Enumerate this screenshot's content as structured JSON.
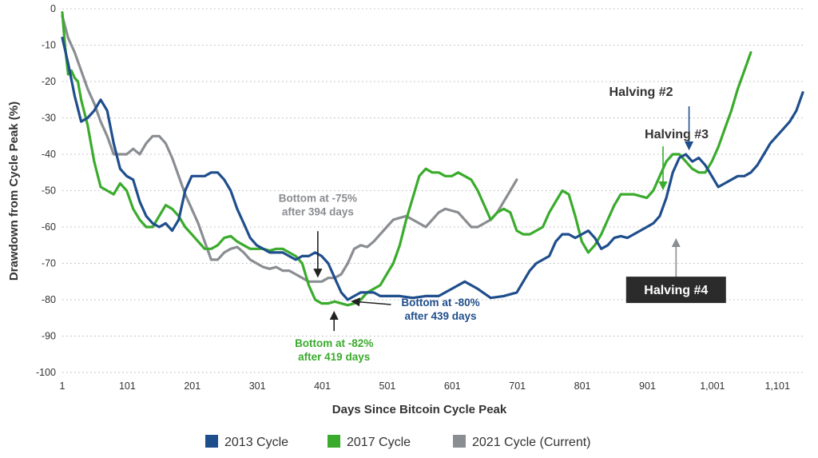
{
  "chart_data": {
    "type": "line",
    "title": "",
    "xlabel": "Days Since Bitcoin Cycle Peak",
    "ylabel": "Drawdown from Cycle Peak (%)",
    "xlim": [
      1,
      1140
    ],
    "ylim": [
      -100,
      0
    ],
    "x_ticks": [
      1,
      101,
      201,
      301,
      401,
      501,
      601,
      701,
      801,
      901,
      1001,
      1101
    ],
    "x_tick_labels": [
      "1",
      "101",
      "201",
      "301",
      "401",
      "501",
      "601",
      "701",
      "801",
      "901",
      "1,001",
      "1,101"
    ],
    "y_ticks": [
      0,
      -10,
      -20,
      -30,
      -40,
      -50,
      -60,
      -70,
      -80,
      -90,
      -100
    ],
    "y_tick_labels": [
      "0",
      "-10",
      "-20",
      "-30",
      "-40",
      "-50",
      "-60",
      "-70",
      "-80",
      "-90",
      "-100"
    ],
    "grid": "horizontal dotted",
    "legend_position": "bottom",
    "series": [
      {
        "name": "2013 Cycle",
        "color": "#1f4e8c",
        "points": [
          [
            1,
            -8
          ],
          [
            10,
            -15
          ],
          [
            20,
            -24
          ],
          [
            30,
            -31
          ],
          [
            40,
            -30
          ],
          [
            50,
            -28
          ],
          [
            60,
            -25
          ],
          [
            70,
            -28
          ],
          [
            80,
            -37
          ],
          [
            90,
            -44
          ],
          [
            100,
            -46
          ],
          [
            110,
            -47
          ],
          [
            120,
            -53
          ],
          [
            130,
            -57
          ],
          [
            140,
            -59
          ],
          [
            150,
            -60
          ],
          [
            160,
            -59
          ],
          [
            170,
            -61
          ],
          [
            180,
            -58
          ],
          [
            190,
            -50
          ],
          [
            200,
            -46
          ],
          [
            210,
            -46
          ],
          [
            220,
            -46
          ],
          [
            230,
            -45
          ],
          [
            240,
            -45
          ],
          [
            250,
            -47
          ],
          [
            260,
            -50
          ],
          [
            270,
            -55
          ],
          [
            280,
            -59
          ],
          [
            290,
            -63
          ],
          [
            300,
            -65
          ],
          [
            310,
            -66
          ],
          [
            320,
            -67
          ],
          [
            330,
            -67
          ],
          [
            340,
            -67
          ],
          [
            350,
            -68
          ],
          [
            360,
            -69
          ],
          [
            370,
            -68
          ],
          [
            380,
            -68
          ],
          [
            390,
            -67
          ],
          [
            400,
            -68
          ],
          [
            410,
            -70
          ],
          [
            420,
            -74
          ],
          [
            430,
            -78
          ],
          [
            440,
            -80
          ],
          [
            450,
            -79
          ],
          [
            460,
            -78
          ],
          [
            470,
            -78
          ],
          [
            480,
            -78
          ],
          [
            490,
            -79
          ],
          [
            500,
            -79
          ],
          [
            520,
            -79
          ],
          [
            540,
            -79.5
          ],
          [
            560,
            -79
          ],
          [
            580,
            -79
          ],
          [
            600,
            -77
          ],
          [
            620,
            -75
          ],
          [
            640,
            -77
          ],
          [
            660,
            -79.5
          ],
          [
            680,
            -79
          ],
          [
            700,
            -78
          ],
          [
            710,
            -75
          ],
          [
            720,
            -72
          ],
          [
            730,
            -70
          ],
          [
            740,
            -69
          ],
          [
            750,
            -68
          ],
          [
            760,
            -64
          ],
          [
            770,
            -62
          ],
          [
            780,
            -62
          ],
          [
            790,
            -63
          ],
          [
            800,
            -62
          ],
          [
            810,
            -61
          ],
          [
            820,
            -63
          ],
          [
            830,
            -66
          ],
          [
            840,
            -65
          ],
          [
            850,
            -63
          ],
          [
            860,
            -62.5
          ],
          [
            870,
            -63
          ],
          [
            880,
            -62
          ],
          [
            890,
            -61
          ],
          [
            900,
            -60
          ],
          [
            910,
            -59
          ],
          [
            920,
            -57
          ],
          [
            930,
            -52
          ],
          [
            940,
            -45
          ],
          [
            950,
            -41
          ],
          [
            960,
            -40
          ],
          [
            970,
            -42
          ],
          [
            980,
            -41
          ],
          [
            990,
            -43
          ],
          [
            1000,
            -46
          ],
          [
            1010,
            -49
          ],
          [
            1020,
            -48
          ],
          [
            1030,
            -47
          ],
          [
            1040,
            -46
          ],
          [
            1050,
            -46
          ],
          [
            1060,
            -45
          ],
          [
            1070,
            -43
          ],
          [
            1080,
            -40
          ],
          [
            1090,
            -37
          ],
          [
            1100,
            -35
          ],
          [
            1110,
            -33
          ],
          [
            1120,
            -31
          ],
          [
            1130,
            -28
          ],
          [
            1140,
            -23
          ]
        ]
      },
      {
        "name": "2017 Cycle",
        "color": "#3aab2c",
        "points": [
          [
            1,
            -1
          ],
          [
            5,
            -10
          ],
          [
            10,
            -18
          ],
          [
            15,
            -17
          ],
          [
            20,
            -19
          ],
          [
            25,
            -20
          ],
          [
            30,
            -25
          ],
          [
            40,
            -32
          ],
          [
            50,
            -42
          ],
          [
            60,
            -49
          ],
          [
            70,
            -50
          ],
          [
            80,
            -51
          ],
          [
            90,
            -48
          ],
          [
            100,
            -50
          ],
          [
            110,
            -55
          ],
          [
            120,
            -58
          ],
          [
            130,
            -60
          ],
          [
            140,
            -60
          ],
          [
            150,
            -57
          ],
          [
            160,
            -54
          ],
          [
            170,
            -55
          ],
          [
            180,
            -57
          ],
          [
            190,
            -60
          ],
          [
            200,
            -62
          ],
          [
            210,
            -64
          ],
          [
            220,
            -66
          ],
          [
            230,
            -66
          ],
          [
            240,
            -65
          ],
          [
            250,
            -63
          ],
          [
            260,
            -62.5
          ],
          [
            270,
            -64
          ],
          [
            280,
            -65
          ],
          [
            290,
            -66
          ],
          [
            300,
            -66
          ],
          [
            310,
            -66
          ],
          [
            320,
            -66.5
          ],
          [
            330,
            -66
          ],
          [
            340,
            -66
          ],
          [
            350,
            -67
          ],
          [
            360,
            -68
          ],
          [
            370,
            -70
          ],
          [
            380,
            -76
          ],
          [
            390,
            -80
          ],
          [
            400,
            -81
          ],
          [
            410,
            -81
          ],
          [
            420,
            -80.5
          ],
          [
            430,
            -81
          ],
          [
            440,
            -81.5
          ],
          [
            450,
            -81
          ],
          [
            460,
            -80
          ],
          [
            470,
            -78
          ],
          [
            480,
            -77
          ],
          [
            490,
            -76
          ],
          [
            500,
            -73
          ],
          [
            510,
            -70
          ],
          [
            520,
            -65
          ],
          [
            530,
            -58
          ],
          [
            540,
            -52
          ],
          [
            550,
            -46
          ],
          [
            560,
            -44
          ],
          [
            570,
            -45
          ],
          [
            580,
            -45
          ],
          [
            590,
            -46
          ],
          [
            600,
            -46
          ],
          [
            610,
            -45
          ],
          [
            620,
            -46
          ],
          [
            630,
            -47
          ],
          [
            640,
            -50
          ],
          [
            650,
            -54
          ],
          [
            660,
            -58
          ],
          [
            670,
            -56
          ],
          [
            680,
            -55
          ],
          [
            690,
            -56
          ],
          [
            700,
            -61
          ],
          [
            710,
            -62
          ],
          [
            720,
            -62
          ],
          [
            730,
            -61
          ],
          [
            740,
            -60
          ],
          [
            750,
            -56
          ],
          [
            760,
            -53
          ],
          [
            770,
            -50
          ],
          [
            780,
            -51
          ],
          [
            790,
            -57
          ],
          [
            800,
            -64
          ],
          [
            810,
            -67
          ],
          [
            820,
            -65
          ],
          [
            830,
            -62
          ],
          [
            840,
            -58
          ],
          [
            850,
            -54
          ],
          [
            860,
            -51
          ],
          [
            870,
            -51
          ],
          [
            880,
            -51
          ],
          [
            890,
            -51.5
          ],
          [
            900,
            -52
          ],
          [
            910,
            -50
          ],
          [
            920,
            -46
          ],
          [
            930,
            -42
          ],
          [
            940,
            -40
          ],
          [
            950,
            -40
          ],
          [
            960,
            -42
          ],
          [
            970,
            -44
          ],
          [
            980,
            -45
          ],
          [
            990,
            -45
          ],
          [
            1000,
            -42
          ],
          [
            1010,
            -38
          ],
          [
            1020,
            -33
          ],
          [
            1030,
            -28
          ],
          [
            1040,
            -22
          ],
          [
            1050,
            -17
          ],
          [
            1060,
            -12
          ]
        ]
      },
      {
        "name": "2021 Cycle (Current)",
        "color": "#8a8d91",
        "points": [
          [
            1,
            -2
          ],
          [
            10,
            -8
          ],
          [
            20,
            -12
          ],
          [
            30,
            -17
          ],
          [
            40,
            -22
          ],
          [
            50,
            -26
          ],
          [
            60,
            -31
          ],
          [
            70,
            -35
          ],
          [
            80,
            -40
          ],
          [
            90,
            -40
          ],
          [
            100,
            -40
          ],
          [
            110,
            -38.5
          ],
          [
            120,
            -40
          ],
          [
            130,
            -37
          ],
          [
            140,
            -35
          ],
          [
            150,
            -35
          ],
          [
            160,
            -37
          ],
          [
            170,
            -41
          ],
          [
            180,
            -46
          ],
          [
            190,
            -51
          ],
          [
            200,
            -55
          ],
          [
            210,
            -59
          ],
          [
            220,
            -64
          ],
          [
            230,
            -69
          ],
          [
            240,
            -69
          ],
          [
            250,
            -67
          ],
          [
            260,
            -66
          ],
          [
            270,
            -65.5
          ],
          [
            280,
            -67
          ],
          [
            290,
            -69
          ],
          [
            300,
            -70
          ],
          [
            310,
            -71
          ],
          [
            320,
            -71.5
          ],
          [
            330,
            -71
          ],
          [
            340,
            -72
          ],
          [
            350,
            -72
          ],
          [
            360,
            -73
          ],
          [
            370,
            -74
          ],
          [
            380,
            -75
          ],
          [
            390,
            -75
          ],
          [
            394,
            -75
          ],
          [
            400,
            -75
          ],
          [
            410,
            -74
          ],
          [
            420,
            -74
          ],
          [
            430,
            -73
          ],
          [
            440,
            -70
          ],
          [
            450,
            -66
          ],
          [
            460,
            -65
          ],
          [
            470,
            -65.5
          ],
          [
            480,
            -64
          ],
          [
            490,
            -62
          ],
          [
            500,
            -60
          ],
          [
            510,
            -58
          ],
          [
            520,
            -57.5
          ],
          [
            530,
            -57
          ],
          [
            540,
            -58
          ],
          [
            550,
            -59
          ],
          [
            560,
            -60
          ],
          [
            570,
            -58
          ],
          [
            580,
            -56
          ],
          [
            590,
            -55
          ],
          [
            600,
            -55.5
          ],
          [
            610,
            -56
          ],
          [
            620,
            -58
          ],
          [
            630,
            -60
          ],
          [
            640,
            -60
          ],
          [
            650,
            -59
          ],
          [
            660,
            -58
          ],
          [
            670,
            -56
          ],
          [
            680,
            -53
          ],
          [
            690,
            -50
          ],
          [
            700,
            -47
          ]
        ]
      }
    ],
    "annotations": [
      {
        "text_lines": [
          "Bottom at -75%",
          "after 394 days"
        ],
        "color": "#8a8d91",
        "point": [
          394,
          -75
        ]
      },
      {
        "text_lines": [
          "Bottom at -80%",
          "after 439 days"
        ],
        "color": "#1f4e8c",
        "point": [
          439,
          -80
        ]
      },
      {
        "text_lines": [
          "Bottom at -82%",
          "after 419 days"
        ],
        "color": "#3aab2c",
        "point": [
          419,
          -82
        ]
      },
      {
        "text_lines": [
          "Halving #2"
        ],
        "color": "#333333",
        "point": [
          965,
          -40
        ],
        "style": "plain"
      },
      {
        "text_lines": [
          "Halving #3"
        ],
        "color": "#3aab2c",
        "point": [
          925,
          -51
        ],
        "style": "plain-dark"
      },
      {
        "text_lines": [
          "Halving #4"
        ],
        "color": "#8a8d91",
        "point": [
          945,
          -62
        ],
        "style": "boxed"
      }
    ]
  }
}
